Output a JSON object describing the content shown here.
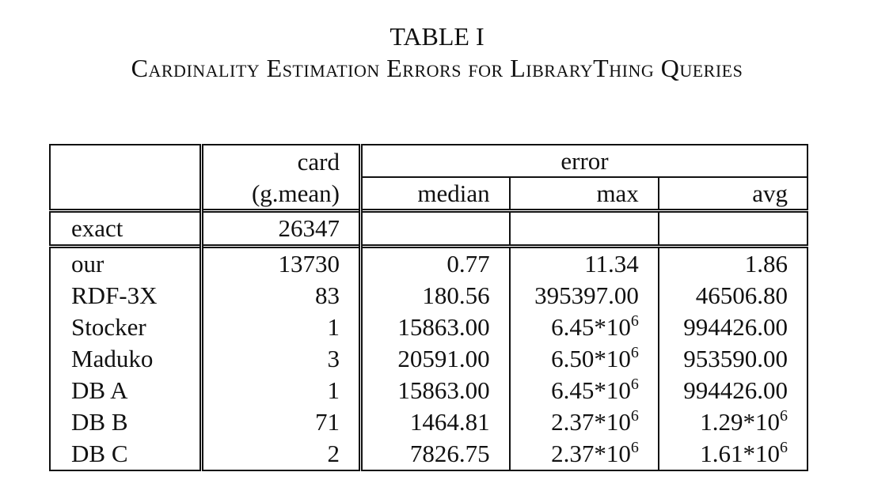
{
  "caption": {
    "label": "TABLE I",
    "title": "Cardinality Estimation Errors for LibraryThing Queries"
  },
  "table": {
    "headers": {
      "card_line1": "card",
      "card_line2": "(g.mean)",
      "error": "error",
      "median": "median",
      "max": "max",
      "avg": "avg"
    },
    "rows": [
      {
        "name": "exact",
        "card": "26347",
        "median": "",
        "max": {
          "base": "",
          "exp": ""
        },
        "avg": {
          "base": "",
          "exp": ""
        }
      },
      {
        "name": "our",
        "card": "13730",
        "median": "0.77",
        "max": {
          "base": "11.34",
          "exp": ""
        },
        "avg": {
          "base": "1.86",
          "exp": ""
        }
      },
      {
        "name": "RDF-3X",
        "card": "83",
        "median": "180.56",
        "max": {
          "base": "395397.00",
          "exp": ""
        },
        "avg": {
          "base": "46506.80",
          "exp": ""
        }
      },
      {
        "name": "Stocker",
        "card": "1",
        "median": "15863.00",
        "max": {
          "base": "6.45*10",
          "exp": "6"
        },
        "avg": {
          "base": "994426.00",
          "exp": ""
        }
      },
      {
        "name": "Maduko",
        "card": "3",
        "median": "20591.00",
        "max": {
          "base": "6.50*10",
          "exp": "6"
        },
        "avg": {
          "base": "953590.00",
          "exp": ""
        }
      },
      {
        "name": "DB  A",
        "card": "1",
        "median": "15863.00",
        "max": {
          "base": "6.45*10",
          "exp": "6"
        },
        "avg": {
          "base": "994426.00",
          "exp": ""
        }
      },
      {
        "name": "DB  B",
        "card": "71",
        "median": "1464.81",
        "max": {
          "base": "2.37*10",
          "exp": "6"
        },
        "avg": {
          "base": "1.29*10",
          "exp": "6"
        }
      },
      {
        "name": "DB  C",
        "card": "2",
        "median": "7826.75",
        "max": {
          "base": "2.37*10",
          "exp": "6"
        },
        "avg": {
          "base": "1.61*10",
          "exp": "6"
        }
      }
    ]
  }
}
